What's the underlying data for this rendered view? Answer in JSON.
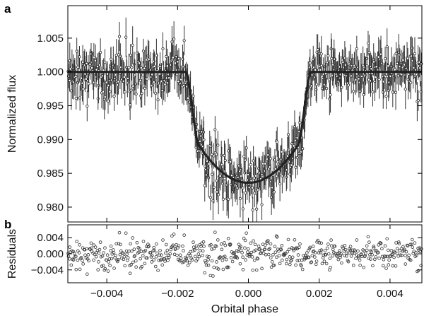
{
  "chart_data": [
    {
      "panel": "a",
      "type": "scatter",
      "xlabel": "",
      "ylabel": "Normalized flux",
      "xlim": [
        -0.0051,
        0.0049
      ],
      "ylim": [
        0.9778,
        1.0098
      ],
      "x_ticks": [
        -0.004,
        -0.002,
        0.0,
        0.002,
        0.004
      ],
      "y_ticks": [
        0.98,
        0.985,
        0.99,
        0.995,
        1.0,
        1.005
      ],
      "y_tick_labels": [
        "0.980",
        "0.985",
        "0.990",
        "0.995",
        "1.000",
        "1.005"
      ],
      "error_bars": true,
      "model": {
        "baseline": 1.0,
        "ingress_start": -0.00178,
        "ingress_end": -0.00138,
        "egress_start": 0.00138,
        "egress_end": 0.00178,
        "depth_at_center": 0.9836,
        "sample_points": [
          {
            "x": -0.0051,
            "y": 1.0
          },
          {
            "x": -0.0018,
            "y": 1.0
          },
          {
            "x": -0.0015,
            "y": 0.9905
          },
          {
            "x": -0.001,
            "y": 0.9862
          },
          {
            "x": -0.0005,
            "y": 0.9843
          },
          {
            "x": 0.0,
            "y": 0.9836
          },
          {
            "x": 0.0005,
            "y": 0.9843
          },
          {
            "x": 0.001,
            "y": 0.9862
          },
          {
            "x": 0.0015,
            "y": 0.9905
          },
          {
            "x": 0.0018,
            "y": 1.0
          },
          {
            "x": 0.0049,
            "y": 1.0
          }
        ]
      },
      "data_point_count": 560,
      "out_of_transit_scatter": 0.0022,
      "in_transit_scatter": 0.0024,
      "typical_error_bar": 0.0021
    },
    {
      "panel": "b",
      "type": "scatter",
      "xlabel": "Orbital phase",
      "ylabel": "Residuals",
      "xlim": [
        -0.0051,
        0.0049
      ],
      "ylim": [
        -0.0072,
        0.0072
      ],
      "x_ticks": [
        -0.004,
        -0.002,
        0.0,
        0.002,
        0.004
      ],
      "x_tick_labels": [
        "−0.004",
        "−0.002",
        "0.000",
        "0.002",
        "0.004"
      ],
      "y_ticks": [
        -0.004,
        0.0,
        0.004
      ],
      "y_tick_labels": [
        "−0.004",
        "0.000",
        "0.004"
      ],
      "data_point_count": 560,
      "residual_scatter": 0.0021
    }
  ]
}
